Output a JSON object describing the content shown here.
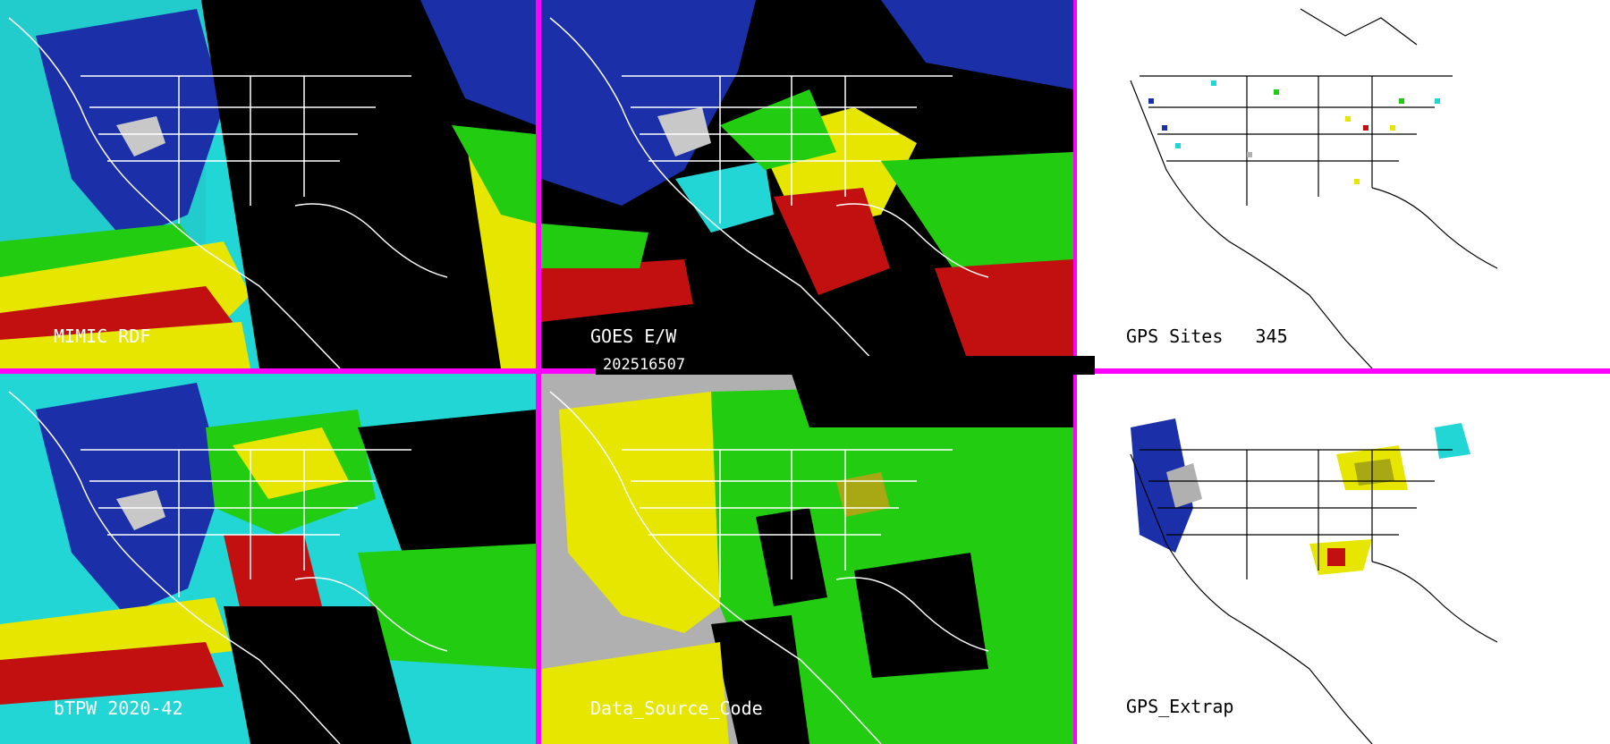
{
  "panels": [
    {
      "id": "mimic",
      "label": "MIMIC RDF"
    },
    {
      "id": "goes",
      "label": "GOES E/W"
    },
    {
      "id": "gps-sites",
      "label": "GPS Sites",
      "count": "345"
    },
    {
      "id": "btpw",
      "label": "bTPW 2020-42"
    },
    {
      "id": "dsc",
      "label": "Data_Source_Code"
    },
    {
      "id": "gps-extrap",
      "label": "GPS_Extrap"
    }
  ],
  "timestamp": "202516507",
  "colors": {
    "divider": "#ff00ff",
    "dry_blue": "#1a2fa8",
    "cyan": "#22d6d6",
    "green": "#22cc11",
    "yellow": "#e6e600",
    "red": "#c21010",
    "gray": "#b0b0b0"
  }
}
